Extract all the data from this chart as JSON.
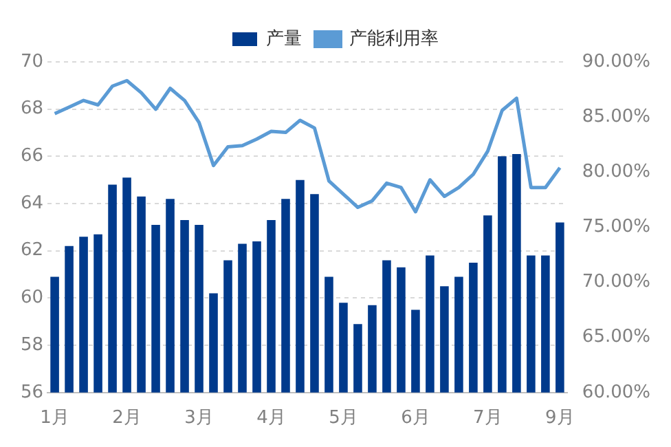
{
  "chart_data": {
    "type": "bar",
    "categories": [
      "1月",
      null,
      null,
      null,
      null,
      "2月",
      null,
      null,
      null,
      null,
      "3月",
      null,
      null,
      null,
      null,
      "4月",
      null,
      null,
      null,
      null,
      "5月",
      null,
      null,
      null,
      null,
      "6月",
      null,
      null,
      null,
      null,
      "7月",
      null,
      null,
      null,
      null,
      "9月"
    ],
    "series": [
      {
        "name": "产量",
        "color": "#003a8c",
        "values": [
          60.9,
          62.2,
          62.6,
          62.7,
          64.8,
          65.1,
          64.3,
          63.1,
          64.2,
          63.3,
          63.1,
          60.2,
          61.6,
          62.3,
          62.4,
          63.3,
          64.2,
          65.0,
          64.4,
          60.9,
          59.8,
          58.9,
          59.7,
          61.6,
          61.3,
          59.5,
          61.8,
          60.5,
          60.9,
          61.5,
          63.5,
          66.0,
          66.1,
          61.8,
          61.8,
          63.2
        ]
      },
      {
        "name": "产能利用率",
        "type": "line",
        "axis": "y2",
        "color": "#5b9bd5",
        "values": [
          85.3,
          85.9,
          86.5,
          86.1,
          87.8,
          88.3,
          87.2,
          85.7,
          87.6,
          86.5,
          84.5,
          80.6,
          82.3,
          82.4,
          83.0,
          83.7,
          83.6,
          84.7,
          84.0,
          79.2,
          78.0,
          76.8,
          77.4,
          79.0,
          78.6,
          76.4,
          79.3,
          77.8,
          78.6,
          79.8,
          81.9,
          85.6,
          86.7,
          78.6,
          78.6,
          80.4
        ]
      }
    ],
    "ylim": [
      56,
      70
    ],
    "yticks": [
      56,
      58,
      60,
      62,
      64,
      66,
      68,
      70
    ],
    "y2lim": [
      60,
      90
    ],
    "y2ticks": [
      {
        "value": 60,
        "label": "60.00%"
      },
      {
        "value": 65,
        "label": "65.00%"
      },
      {
        "value": 70,
        "label": "70.00%"
      },
      {
        "value": 75,
        "label": "75.00%"
      },
      {
        "value": 80,
        "label": "80.00%"
      },
      {
        "value": 85,
        "label": "85.00%"
      },
      {
        "value": 90,
        "label": "90.00%"
      }
    ],
    "grid": "y",
    "legend": "top",
    "marker": "none",
    "line_style": "solid"
  }
}
